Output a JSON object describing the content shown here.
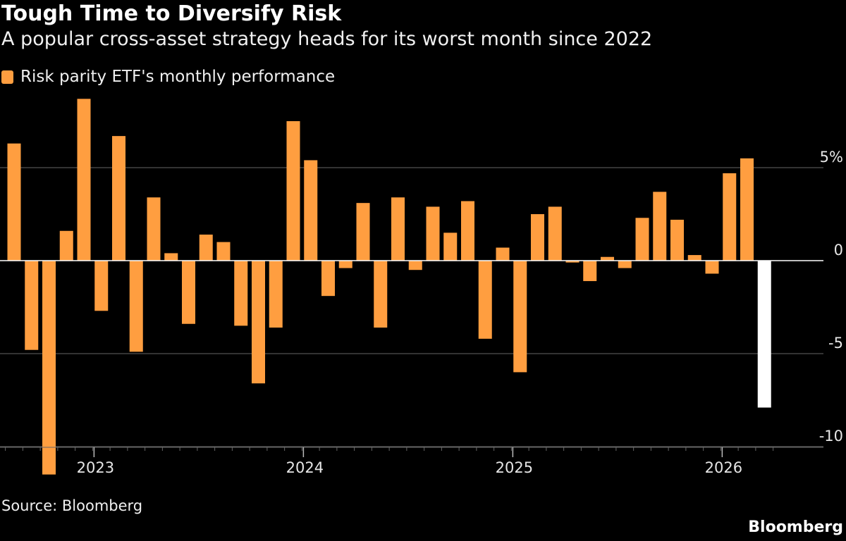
{
  "title": "Tough Time to Diversify Risk",
  "subtitle": "A popular cross-asset strategy heads for its worst month since 2022",
  "legend": {
    "label": "Risk parity ETF's monthly performance",
    "color": "#ff9e40"
  },
  "source": "Source: Bloomberg",
  "brand": "Bloomberg",
  "colors": {
    "background": "#000000",
    "bar": "#ff9e40",
    "highlight": "#ffffff",
    "grid": "#666666",
    "zero_line": "#ffffff"
  },
  "chart_data": {
    "type": "bar",
    "series": [
      {
        "name": "Risk parity ETF's monthly performance",
        "values": [
          6.3,
          -4.8,
          -11.5,
          1.6,
          8.7,
          -2.7,
          6.7,
          -4.9,
          3.4,
          0.4,
          -3.4,
          1.4,
          1.0,
          -3.5,
          -6.6,
          -3.6,
          7.5,
          5.4,
          -1.9,
          -0.4,
          3.1,
          -3.6,
          3.4,
          -0.5,
          2.9,
          1.5,
          3.2,
          -4.2,
          0.7,
          -6.0,
          2.5,
          2.9,
          -0.1,
          -1.1,
          0.2,
          -0.4,
          2.3,
          3.7,
          2.2,
          0.3,
          -0.7,
          4.7,
          5.5,
          -7.9
        ],
        "highlight_last": true
      }
    ],
    "x_start": "2022-08",
    "x_end": "2026-03",
    "x_tick_labels": [
      "2023",
      "2024",
      "2025",
      "2026"
    ],
    "y_ticks": [
      {
        "value": 5,
        "label": "5%"
      },
      {
        "value": 0,
        "label": "0"
      },
      {
        "value": -5,
        "label": "-5"
      },
      {
        "value": -10,
        "label": "-10"
      }
    ],
    "ylim": [
      -12,
      9
    ],
    "grid": true,
    "legend_position": "top-left"
  }
}
